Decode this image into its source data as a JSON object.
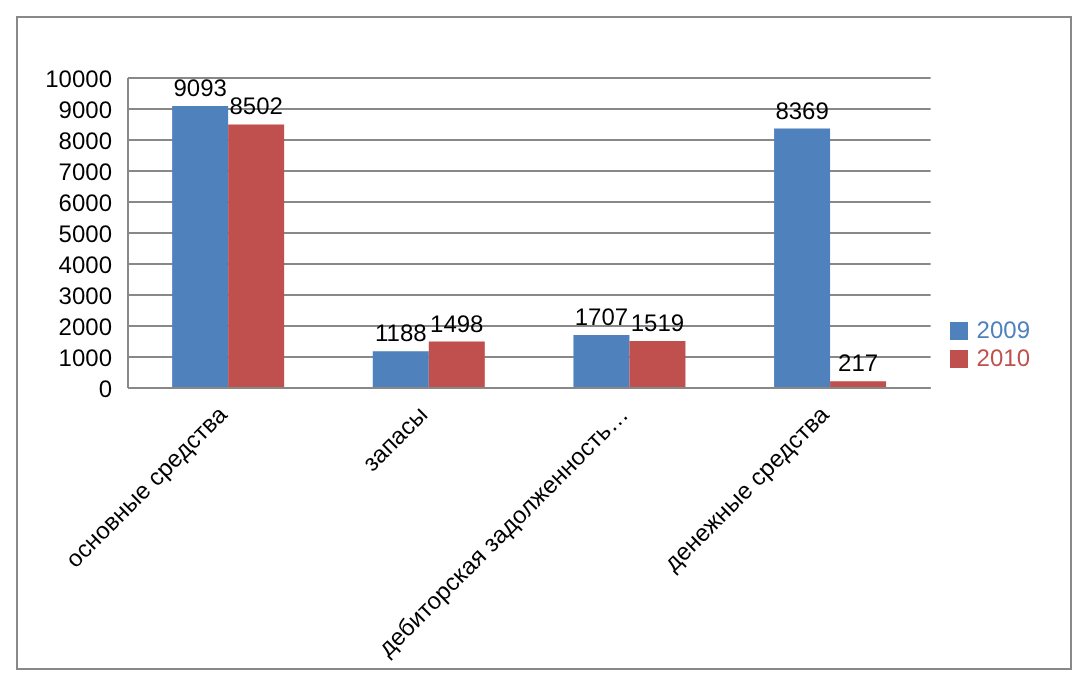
{
  "chart_data": {
    "type": "bar",
    "categories": [
      "основные средства",
      "запасы",
      "дебиторская задолженность…",
      "денежные средства"
    ],
    "series": [
      {
        "name": "2009",
        "color": "#4f81bd",
        "values": [
          9093,
          1188,
          1707,
          8369
        ]
      },
      {
        "name": "2010",
        "color": "#c0504d",
        "values": [
          8502,
          1498,
          1519,
          217
        ]
      }
    ],
    "ylim": [
      0,
      10000
    ],
    "yticks": [
      0,
      1000,
      2000,
      3000,
      4000,
      5000,
      6000,
      7000,
      8000,
      9000,
      10000
    ],
    "grid": "y",
    "legend": "right",
    "data_labels": true
  }
}
